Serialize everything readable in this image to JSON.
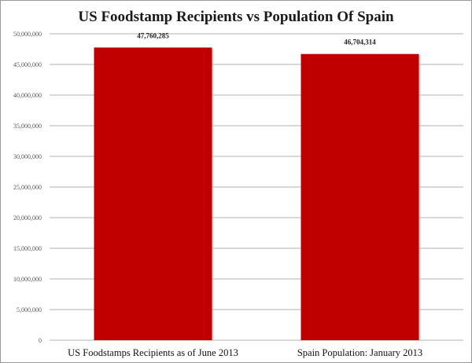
{
  "chart_data": {
    "type": "bar",
    "title": "US Foodstamp Recipients vs Population Of  Spain",
    "xlabel": "",
    "ylabel": "",
    "categories": [
      "US Foodstamps Recipients as of June 2013",
      "Spain Population: January 2013"
    ],
    "values": [
      47760285,
      46704314
    ],
    "data_labels": [
      "47,760,285",
      "46,704,314"
    ],
    "ylim": [
      0,
      50000000
    ],
    "yticks": [
      0,
      5000000,
      10000000,
      15000000,
      20000000,
      25000000,
      30000000,
      35000000,
      40000000,
      45000000,
      50000000
    ],
    "ytick_labels": [
      "0",
      "5,000,000",
      "10,000,000",
      "15,000,000",
      "20,000,000",
      "25,000,000",
      "30,000,000",
      "35,000,000",
      "40,000,000",
      "45,000,000",
      "50,000,000"
    ],
    "grid": true,
    "bar_color": "#c00000"
  }
}
